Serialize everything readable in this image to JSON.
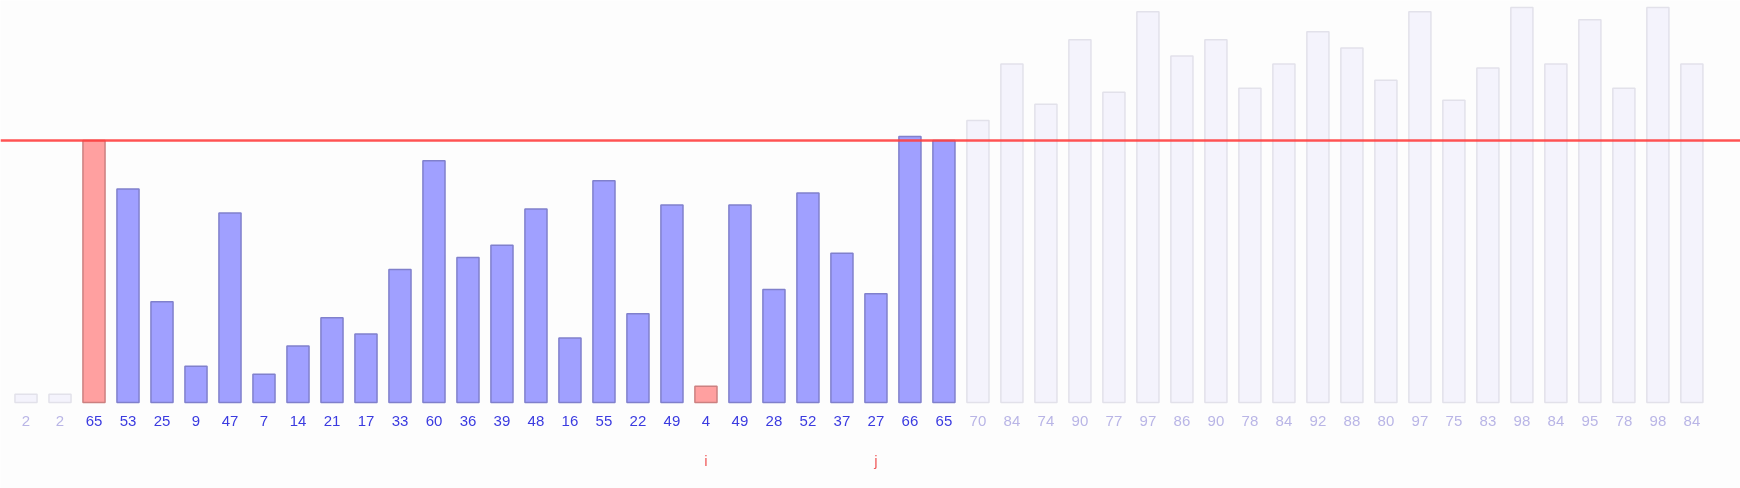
{
  "chart_data": {
    "type": "bar",
    "categories": [
      null,
      null,
      null,
      null,
      null,
      null,
      null,
      null,
      null,
      null,
      null,
      null,
      null,
      null,
      null,
      null,
      null,
      null,
      null,
      null,
      null,
      null,
      null,
      null,
      null,
      null,
      null,
      null,
      null,
      null,
      null,
      null,
      null,
      null,
      null,
      null,
      null,
      null,
      null,
      null,
      null,
      null,
      null,
      null,
      null,
      null,
      null,
      null,
      null,
      null
    ],
    "tick_labels": false,
    "values": [
      2,
      2,
      65,
      53,
      25,
      9,
      47,
      7,
      14,
      21,
      17,
      33,
      60,
      36,
      39,
      48,
      16,
      55,
      22,
      49,
      4,
      49,
      28,
      52,
      37,
      27,
      66,
      65,
      70,
      84,
      74,
      90,
      77,
      97,
      86,
      90,
      78,
      84,
      92,
      88,
      80,
      97,
      75,
      83,
      98,
      84,
      95,
      78,
      98,
      84
    ],
    "colors": [
      "#f4f3fc",
      "#f4f3fc",
      "#ffa0a0",
      "#a0a0ff",
      "#a0a0ff",
      "#a0a0ff",
      "#a0a0ff",
      "#a0a0ff",
      "#a0a0ff",
      "#a0a0ff",
      "#a0a0ff",
      "#a0a0ff",
      "#a0a0ff",
      "#a0a0ff",
      "#a0a0ff",
      "#a0a0ff",
      "#a0a0ff",
      "#a0a0ff",
      "#a0a0ff",
      "#a0a0ff",
      "#ffa0a0",
      "#a0a0ff",
      "#a0a0ff",
      "#a0a0ff",
      "#a0a0ff",
      "#a0a0ff",
      "#a0a0ff",
      "#a0a0ff",
      "#f4f3fc",
      "#f4f3fc",
      "#f4f3fc",
      "#f4f3fc",
      "#f4f3fc",
      "#f4f3fc",
      "#f4f3fc",
      "#f4f3fc",
      "#f4f3fc",
      "#f4f3fc",
      "#f4f3fc",
      "#f4f3fc",
      "#f4f3fc",
      "#f4f3fc",
      "#f4f3fc",
      "#f4f3fc",
      "#f4f3fc",
      "#f4f3fc",
      "#f4f3fc",
      "#f4f3fc",
      "#f4f3fc",
      "#f4f3fc"
    ],
    "data_labels": true,
    "ref_lines": [
      {
        "axis": "y",
        "value": 65,
        "color": "#ff4040"
      }
    ],
    "annotations": [
      "i",
      "j"
    ],
    "grid": false
  }
}
